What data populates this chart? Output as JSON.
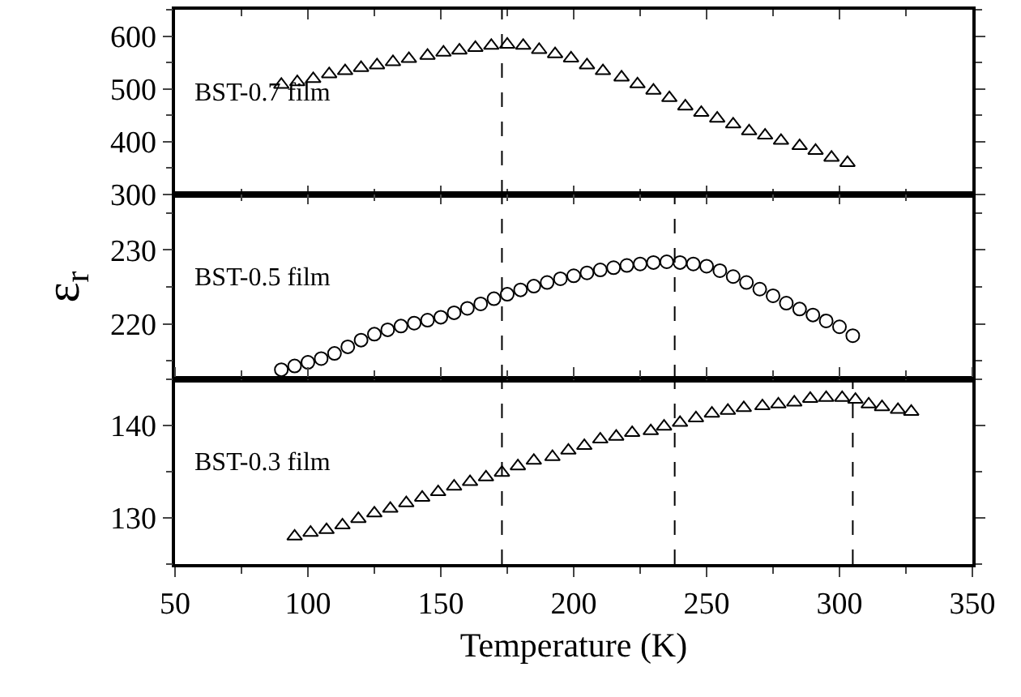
{
  "chart_data": [
    {
      "type": "scatter",
      "marker": "triangle",
      "xlim": [
        50,
        350
      ],
      "xticks": [
        50,
        100,
        150,
        200,
        250,
        300,
        350
      ],
      "ylim": [
        300,
        650
      ],
      "yticks": [
        300,
        400,
        500,
        600
      ],
      "tick_labels": "y",
      "legend": false,
      "x": [
        90,
        96,
        102,
        108,
        114,
        120,
        126,
        132,
        138,
        145,
        151,
        157,
        163,
        169,
        175,
        181,
        187,
        193,
        199,
        205,
        211,
        218,
        224,
        230,
        236,
        242,
        248,
        254,
        260,
        266,
        272,
        278,
        285,
        291,
        297,
        303
      ],
      "series": [
        {
          "name": "BST-0.7 film",
          "color": "#000000",
          "values": [
            508,
            513,
            519,
            528,
            534,
            540,
            545,
            551,
            557,
            563,
            569,
            573,
            578,
            582,
            584,
            582,
            574,
            566,
            558,
            545,
            534,
            522,
            509,
            497,
            483,
            467,
            455,
            444,
            433,
            420,
            412,
            402,
            392,
            383,
            370,
            360
          ]
        }
      ],
      "ref_lines": [
        {
          "axis": "x",
          "value": 173,
          "line_style": "dashed",
          "color": "#000000"
        }
      ]
    },
    {
      "type": "scatter",
      "marker": "circle",
      "ylabel": "ε$_{r}$",
      "xlim": [
        50,
        350
      ],
      "xticks": [
        50,
        100,
        150,
        200,
        250,
        300,
        350
      ],
      "ylim": [
        212.5,
        237.5
      ],
      "yticks": [
        220,
        230
      ],
      "tick_labels": "y",
      "legend": false,
      "x": [
        90,
        95,
        100,
        105,
        110,
        115,
        120,
        125,
        130,
        135,
        140,
        145,
        150,
        155,
        160,
        165,
        170,
        175,
        180,
        185,
        190,
        195,
        200,
        205,
        210,
        215,
        220,
        225,
        230,
        235,
        240,
        245,
        250,
        255,
        260,
        265,
        270,
        275,
        280,
        285,
        290,
        295,
        300,
        305
      ],
      "series": [
        {
          "name": "BST-0.5 film",
          "color": "#000000",
          "values": [
            213.8,
            214.3,
            214.8,
            215.3,
            216.0,
            216.9,
            217.8,
            218.6,
            219.2,
            219.7,
            220.1,
            220.5,
            220.9,
            221.5,
            222.1,
            222.7,
            223.4,
            224.0,
            224.6,
            225.1,
            225.6,
            226.1,
            226.5,
            226.9,
            227.3,
            227.6,
            227.9,
            228.1,
            228.3,
            228.4,
            228.3,
            228.1,
            227.8,
            227.2,
            226.4,
            225.6,
            224.7,
            223.8,
            222.8,
            222.0,
            221.2,
            220.4,
            219.6,
            218.4
          ]
        }
      ],
      "ref_lines": [
        {
          "axis": "x",
          "value": 173,
          "line_style": "dashed",
          "color": "#000000"
        },
        {
          "axis": "x",
          "value": 238,
          "line_style": "dashed",
          "color": "#000000"
        }
      ]
    },
    {
      "type": "scatter",
      "marker": "triangle",
      "xlabel": "Temperature (K)",
      "xlim": [
        50,
        350
      ],
      "xticks": [
        50,
        100,
        150,
        200,
        250,
        300,
        350
      ],
      "ylim": [
        125,
        145
      ],
      "yticks": [
        130,
        140
      ],
      "legend": false,
      "x": [
        95,
        101,
        107,
        113,
        119,
        125,
        131,
        137,
        143,
        149,
        155,
        161,
        167,
        173,
        179,
        185,
        192,
        198,
        204,
        210,
        216,
        222,
        229,
        234,
        240,
        246,
        252,
        258,
        264,
        271,
        277,
        283,
        289,
        295,
        301,
        306,
        311,
        316,
        322,
        327
      ],
      "series": [
        {
          "name": "BST-0.3 film",
          "color": "#000000",
          "values": [
            128.0,
            128.4,
            128.7,
            129.2,
            129.9,
            130.5,
            131.0,
            131.6,
            132.2,
            132.8,
            133.4,
            133.9,
            134.4,
            134.9,
            135.6,
            136.2,
            136.6,
            137.3,
            137.8,
            138.5,
            138.8,
            139.2,
            139.4,
            139.9,
            140.3,
            140.8,
            141.3,
            141.6,
            141.9,
            142.1,
            142.3,
            142.5,
            142.9,
            143.0,
            143.0,
            142.8,
            142.3,
            142.0,
            141.7,
            141.5
          ]
        }
      ],
      "ref_lines": [
        {
          "axis": "x",
          "value": 173,
          "line_style": "dashed",
          "color": "#000000"
        },
        {
          "axis": "x",
          "value": 238,
          "line_style": "dashed",
          "color": "#000000"
        },
        {
          "axis": "x",
          "value": 305,
          "line_style": "dashed",
          "color": "#000000"
        }
      ]
    }
  ]
}
